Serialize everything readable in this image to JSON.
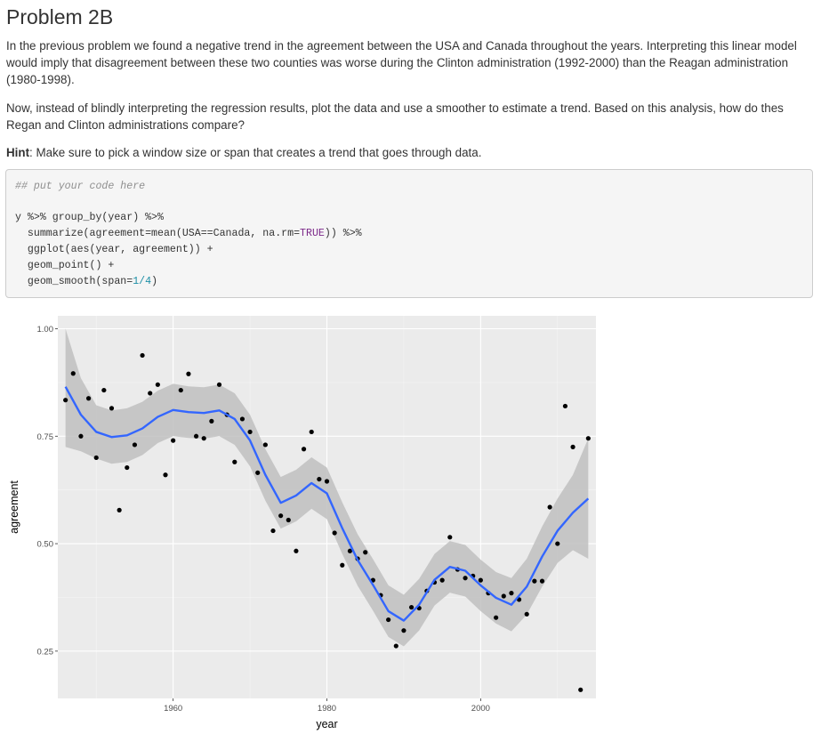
{
  "heading": "Problem 2B",
  "paragraphs": {
    "p1": "In the previous problem we found a negative trend in the agreement between the USA and Canada throughout the years. Interpreting this linear model would imply that disagreement between these two counties was worse during the Clinton administration (1992-2000) than the Reagan administration (1980-1998).",
    "p2": "Now, instead of blindly interpreting the regression results, plot the data and use a smoother to estimate a trend. Based on this analysis, how do thes Regan and Clinton administrations compare?",
    "hint_label": "Hint",
    "hint_text": ": Make sure to pick a window size or span that creates a trend that goes through data."
  },
  "code": {
    "comment": "## put your code here",
    "line1": "y %>% group_by(year) %>%",
    "line2a": "  summarize(agreement=mean(USA==Canada, na.rm=",
    "line2_true": "TRUE",
    "line2b": ")) %>%",
    "line3": "  ggplot(aes(year, agreement)) +",
    "line4": "  geom_point() +",
    "line5a": "  geom_smooth(span=",
    "line5_num": "1/4",
    "line5b": ")"
  },
  "chart_data": {
    "type": "scatter",
    "xlabel": "year",
    "ylabel": "agreement",
    "xlim": [
      1945,
      2015
    ],
    "ylim": [
      0.14,
      1.03
    ],
    "x_ticks": [
      1960,
      1980,
      2000
    ],
    "x_tick_labels": [
      "1960",
      "1980",
      "2000"
    ],
    "y_ticks": [
      0.25,
      0.5,
      0.75,
      1.0
    ],
    "y_tick_labels": [
      "0.25",
      "0.50",
      "0.75",
      "1.00"
    ],
    "grid": true,
    "points": [
      [
        1946,
        0.834
      ],
      [
        1947,
        0.896
      ],
      [
        1948,
        0.75
      ],
      [
        1949,
        0.838
      ],
      [
        1950,
        0.7
      ],
      [
        1951,
        0.857
      ],
      [
        1952,
        0.815
      ],
      [
        1953,
        0.578
      ],
      [
        1954,
        0.677
      ],
      [
        1955,
        0.73
      ],
      [
        1956,
        0.938
      ],
      [
        1957,
        0.85
      ],
      [
        1958,
        0.87
      ],
      [
        1959,
        0.66
      ],
      [
        1960,
        0.74
      ],
      [
        1961,
        0.857
      ],
      [
        1962,
        0.895
      ],
      [
        1963,
        0.75
      ],
      [
        1964,
        0.745
      ],
      [
        1965,
        0.785
      ],
      [
        1966,
        0.87
      ],
      [
        1967,
        0.8
      ],
      [
        1968,
        0.69
      ],
      [
        1969,
        0.79
      ],
      [
        1970,
        0.76
      ],
      [
        1971,
        0.665
      ],
      [
        1972,
        0.73
      ],
      [
        1973,
        0.53
      ],
      [
        1974,
        0.565
      ],
      [
        1975,
        0.555
      ],
      [
        1976,
        0.483
      ],
      [
        1977,
        0.72
      ],
      [
        1978,
        0.76
      ],
      [
        1979,
        0.65
      ],
      [
        1980,
        0.645
      ],
      [
        1981,
        0.525
      ],
      [
        1982,
        0.45
      ],
      [
        1983,
        0.483
      ],
      [
        1984,
        0.465
      ],
      [
        1985,
        0.48
      ],
      [
        1986,
        0.415
      ],
      [
        1987,
        0.38
      ],
      [
        1988,
        0.323
      ],
      [
        1989,
        0.262
      ],
      [
        1990,
        0.298
      ],
      [
        1991,
        0.352
      ],
      [
        1992,
        0.35
      ],
      [
        1993,
        0.39
      ],
      [
        1994,
        0.41
      ],
      [
        1995,
        0.415
      ],
      [
        1996,
        0.515
      ],
      [
        1997,
        0.44
      ],
      [
        1998,
        0.42
      ],
      [
        1999,
        0.425
      ],
      [
        2000,
        0.415
      ],
      [
        2001,
        0.385
      ],
      [
        2002,
        0.328
      ],
      [
        2003,
        0.378
      ],
      [
        2004,
        0.385
      ],
      [
        2005,
        0.37
      ],
      [
        2006,
        0.336
      ],
      [
        2007,
        0.413
      ],
      [
        2008,
        0.413
      ],
      [
        2009,
        0.585
      ],
      [
        2010,
        0.5
      ],
      [
        2011,
        0.82
      ],
      [
        2012,
        0.725
      ],
      [
        2013,
        0.16
      ],
      [
        2014,
        0.745
      ]
    ],
    "smooth": [
      [
        1946,
        0.865
      ],
      [
        1948,
        0.8
      ],
      [
        1950,
        0.76
      ],
      [
        1952,
        0.748
      ],
      [
        1954,
        0.752
      ],
      [
        1956,
        0.768
      ],
      [
        1958,
        0.795
      ],
      [
        1960,
        0.811
      ],
      [
        1962,
        0.806
      ],
      [
        1964,
        0.804
      ],
      [
        1966,
        0.81
      ],
      [
        1968,
        0.79
      ],
      [
        1970,
        0.74
      ],
      [
        1972,
        0.66
      ],
      [
        1974,
        0.595
      ],
      [
        1976,
        0.612
      ],
      [
        1978,
        0.641
      ],
      [
        1980,
        0.617
      ],
      [
        1982,
        0.536
      ],
      [
        1984,
        0.462
      ],
      [
        1986,
        0.404
      ],
      [
        1988,
        0.343
      ],
      [
        1990,
        0.321
      ],
      [
        1992,
        0.358
      ],
      [
        1994,
        0.416
      ],
      [
        1996,
        0.446
      ],
      [
        1998,
        0.437
      ],
      [
        2000,
        0.403
      ],
      [
        2002,
        0.374
      ],
      [
        2004,
        0.358
      ],
      [
        2006,
        0.4
      ],
      [
        2008,
        0.47
      ],
      [
        2010,
        0.53
      ],
      [
        2012,
        0.572
      ],
      [
        2014,
        0.605
      ]
    ],
    "band_upper": [
      [
        1946,
        1.0
      ],
      [
        1948,
        0.885
      ],
      [
        1950,
        0.822
      ],
      [
        1952,
        0.81
      ],
      [
        1954,
        0.815
      ],
      [
        1956,
        0.83
      ],
      [
        1958,
        0.856
      ],
      [
        1960,
        0.872
      ],
      [
        1962,
        0.866
      ],
      [
        1964,
        0.864
      ],
      [
        1966,
        0.87
      ],
      [
        1968,
        0.85
      ],
      [
        1970,
        0.8
      ],
      [
        1972,
        0.72
      ],
      [
        1974,
        0.655
      ],
      [
        1976,
        0.672
      ],
      [
        1978,
        0.701
      ],
      [
        1980,
        0.677
      ],
      [
        1982,
        0.596
      ],
      [
        1984,
        0.522
      ],
      [
        1986,
        0.464
      ],
      [
        1988,
        0.403
      ],
      [
        1990,
        0.381
      ],
      [
        1992,
        0.418
      ],
      [
        1994,
        0.476
      ],
      [
        1996,
        0.506
      ],
      [
        1998,
        0.497
      ],
      [
        2000,
        0.463
      ],
      [
        2002,
        0.434
      ],
      [
        2004,
        0.42
      ],
      [
        2006,
        0.465
      ],
      [
        2008,
        0.54
      ],
      [
        2010,
        0.605
      ],
      [
        2012,
        0.66
      ],
      [
        2014,
        0.745
      ]
    ],
    "band_lower": [
      [
        1946,
        0.725
      ],
      [
        1948,
        0.715
      ],
      [
        1950,
        0.698
      ],
      [
        1952,
        0.686
      ],
      [
        1954,
        0.69
      ],
      [
        1956,
        0.706
      ],
      [
        1958,
        0.734
      ],
      [
        1960,
        0.75
      ],
      [
        1962,
        0.746
      ],
      [
        1964,
        0.744
      ],
      [
        1966,
        0.75
      ],
      [
        1968,
        0.73
      ],
      [
        1970,
        0.68
      ],
      [
        1972,
        0.6
      ],
      [
        1974,
        0.535
      ],
      [
        1976,
        0.552
      ],
      [
        1978,
        0.581
      ],
      [
        1980,
        0.557
      ],
      [
        1982,
        0.476
      ],
      [
        1984,
        0.402
      ],
      [
        1986,
        0.344
      ],
      [
        1988,
        0.283
      ],
      [
        1990,
        0.261
      ],
      [
        1992,
        0.298
      ],
      [
        1994,
        0.356
      ],
      [
        1996,
        0.386
      ],
      [
        1998,
        0.377
      ],
      [
        2000,
        0.343
      ],
      [
        2002,
        0.314
      ],
      [
        2004,
        0.296
      ],
      [
        2006,
        0.335
      ],
      [
        2008,
        0.4
      ],
      [
        2010,
        0.455
      ],
      [
        2012,
        0.485
      ],
      [
        2014,
        0.465
      ]
    ],
    "colors": {
      "panel": "#ebebeb",
      "grid_major": "#ffffff",
      "grid_minor": "#f5f5f5",
      "point": "#000000",
      "smooth": "#3366ff",
      "band": "#bfbfbf"
    }
  }
}
